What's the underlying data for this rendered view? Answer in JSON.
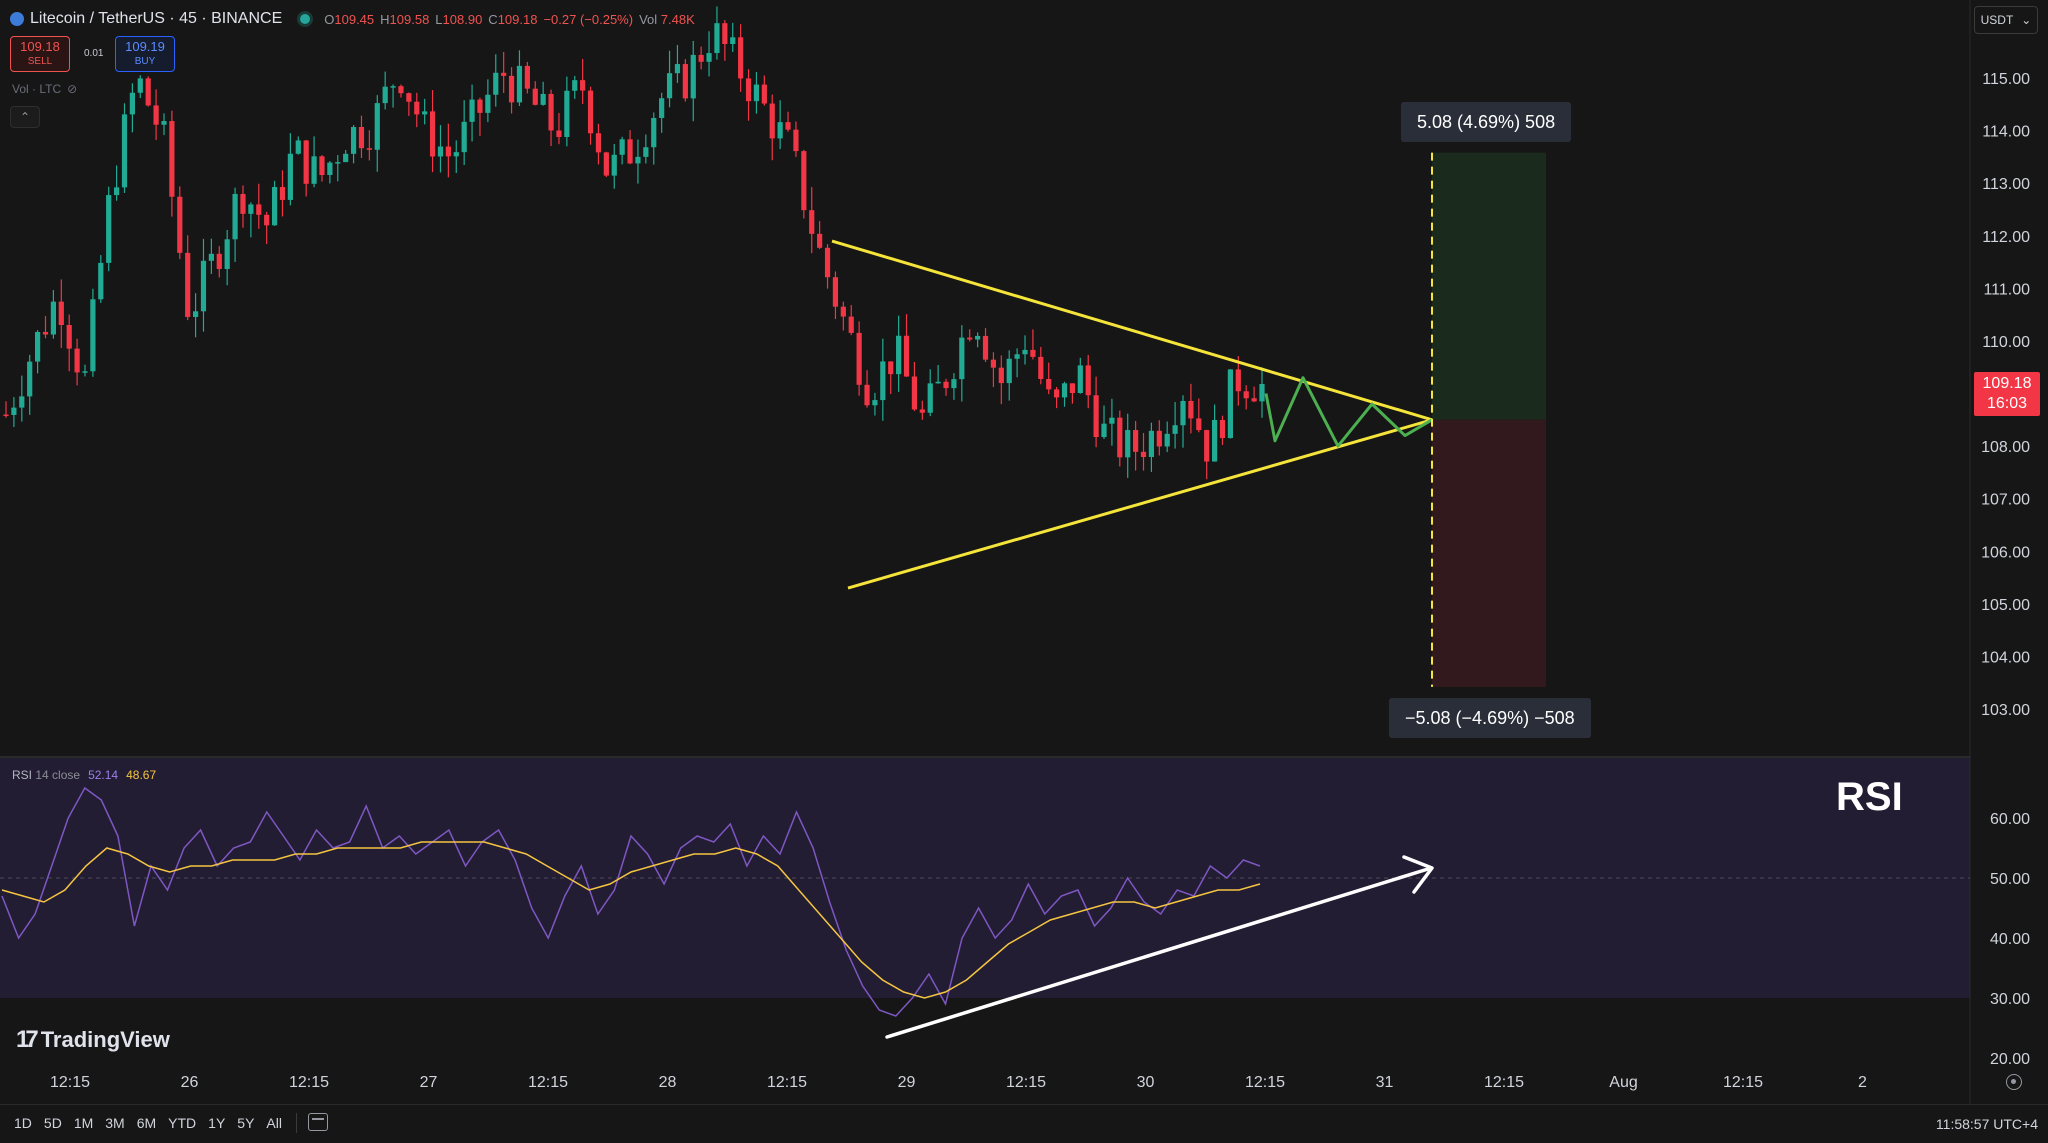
{
  "header": {
    "symbol": "Litecoin / TetherUS · 45 · BINANCE",
    "ohlc": {
      "o_label": "O",
      "o": "109.45",
      "h_label": "H",
      "h": "109.58",
      "l_label": "L",
      "l": "108.90",
      "c_label": "C",
      "c": "109.18",
      "change": "−0.27 (−0.25%)",
      "vol_label": "Vol",
      "vol": "7.48K"
    }
  },
  "trade": {
    "sell_price": "109.18",
    "sell_label": "SELL",
    "buy_price": "109.19",
    "buy_label": "BUY",
    "spread": "0.01"
  },
  "volume_indicator_label": "Vol · LTC",
  "currency": "USDT",
  "current_price": {
    "price": "109.18",
    "countdown": "16:03"
  },
  "measure": {
    "up": "5.08 (4.69%) 508",
    "down": "−5.08 (−4.69%) −508"
  },
  "rsi": {
    "label": "RSI",
    "params": "14 close",
    "value": "52.14",
    "ma_value": "48.67",
    "big_label": "RSI"
  },
  "brand": "TradingView",
  "ranges": [
    "1D",
    "5D",
    "1M",
    "3M",
    "6M",
    "YTD",
    "1Y",
    "5Y",
    "All"
  ],
  "clock": "11:58:57 UTC+4",
  "colors": {
    "up": "#22ab94",
    "down": "#f23645",
    "trendline": "#f5e43a",
    "projection": "#4caf50",
    "rsi_line": "#7e57c2",
    "rsi_ma": "#f5c542",
    "rsi_arrow": "#ffffff"
  },
  "chart_data": [
    {
      "type": "candlestick",
      "title": "Litecoin / TetherUS · 45 · BINANCE",
      "y_ticks": [
        "115.00",
        "114.00",
        "113.00",
        "112.00",
        "111.00",
        "110.00",
        "108.00",
        "107.00",
        "106.00",
        "105.00",
        "104.00",
        "103.00"
      ],
      "ylim": [
        102.2,
        115.9
      ],
      "x_ticks": [
        "12:15",
        "26",
        "12:15",
        "27",
        "12:15",
        "28",
        "12:15",
        "29",
        "12:15",
        "30",
        "12:15",
        "31",
        "12:15",
        "Aug",
        "12:15",
        "2"
      ],
      "close_path": [
        108.6,
        109.8,
        110.9,
        109.2,
        112.8,
        115.0,
        113.9,
        110.5,
        111.6,
        112.9,
        112.2,
        113.6,
        113.1,
        113.9,
        114.1,
        115.2,
        114.0,
        113.5,
        114.3,
        115.1,
        114.6,
        114.0,
        114.9,
        113.2,
        113.7,
        114.6,
        115.0,
        115.9,
        115.2,
        114.4,
        113.6,
        111.8,
        110.4,
        109.1,
        109.8,
        108.5,
        109.4,
        110.6,
        109.2,
        110.1,
        108.6,
        109.4,
        108.2,
        107.9,
        108.3,
        109.1,
        107.9,
        109.3,
        109.18
      ],
      "trendlines": [
        {
          "name": "upper",
          "points": [
            [
              0,
              111.9
            ],
            [
              1,
              108.5
            ]
          ]
        },
        {
          "name": "lower",
          "points": [
            [
              0,
              105.3
            ],
            [
              1,
              108.5
            ]
          ]
        }
      ],
      "projection_path": [
        109.0,
        108.1,
        109.3,
        108.0,
        108.8,
        108.2,
        108.5
      ],
      "measure_target": {
        "entry": 108.5,
        "up": 113.58,
        "down": 103.42
      }
    },
    {
      "type": "line",
      "title": "RSI 14 close",
      "y_ticks": [
        "60.00",
        "50.00",
        "40.00",
        "30.00",
        "20.00"
      ],
      "ylim": [
        19,
        66
      ],
      "overbought_line": 50,
      "series": [
        {
          "name": "RSI",
          "values": [
            47,
            40,
            44,
            52,
            60,
            65,
            63,
            57,
            42,
            52,
            48,
            55,
            58,
            52,
            55,
            56,
            61,
            57,
            53,
            58,
            55,
            56,
            62,
            55,
            57,
            54,
            56,
            58,
            52,
            56,
            58,
            53,
            45,
            40,
            47,
            52,
            44,
            48,
            57,
            54,
            49,
            55,
            57,
            56,
            59,
            52,
            57,
            54,
            61,
            55,
            46,
            38,
            32,
            28,
            27,
            30,
            34,
            29,
            40,
            45,
            40,
            43,
            49,
            44,
            47,
            48,
            42,
            45,
            50,
            46,
            44,
            48,
            47,
            52,
            50,
            53,
            52
          ]
        },
        {
          "name": "RSI MA",
          "values": [
            48,
            47,
            46,
            48,
            52,
            55,
            54,
            52,
            51,
            52,
            52,
            53,
            53,
            53,
            54,
            54,
            55,
            55,
            55,
            55,
            56,
            56,
            56,
            56,
            55,
            54,
            52,
            50,
            48,
            49,
            51,
            52,
            53,
            54,
            54,
            55,
            54,
            52,
            48,
            44,
            40,
            36,
            33,
            31,
            30,
            31,
            33,
            36,
            39,
            41,
            43,
            44,
            45,
            46,
            46,
            45,
            46,
            47,
            48,
            48,
            49
          ]
        }
      ],
      "arrow": {
        "from": 26,
        "to": 50
      }
    }
  ]
}
